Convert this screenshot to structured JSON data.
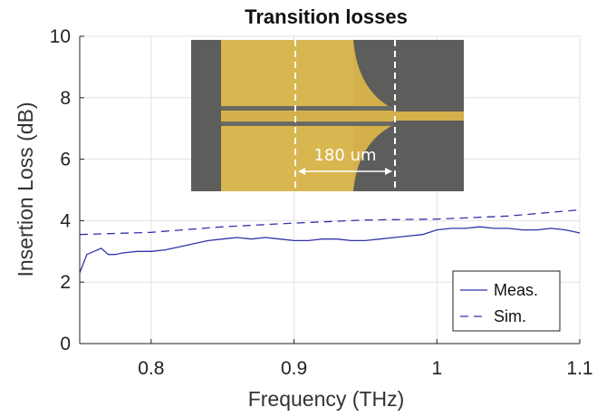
{
  "chart_data": {
    "type": "line",
    "title": "Transition losses",
    "xlabel": "Frequency (THz)",
    "ylabel": "Insertion Loss (dB)",
    "xlim": [
      0.75,
      1.1
    ],
    "ylim": [
      0,
      10
    ],
    "xticks": [
      0.8,
      0.9,
      1,
      1.1
    ],
    "xtick_labels": [
      "0.8",
      "0.9",
      "1",
      "1.1"
    ],
    "yticks": [
      0,
      2,
      4,
      6,
      8,
      10
    ],
    "ytick_labels": [
      "0",
      "2",
      "4",
      "6",
      "8",
      "10"
    ],
    "grid": true,
    "legend_position": "bottom-right",
    "color": "#3333aa",
    "series": [
      {
        "name": "Meas.",
        "style": "solid",
        "x": [
          0.75,
          0.755,
          0.76,
          0.765,
          0.77,
          0.775,
          0.78,
          0.79,
          0.8,
          0.81,
          0.82,
          0.83,
          0.84,
          0.85,
          0.86,
          0.87,
          0.88,
          0.89,
          0.9,
          0.91,
          0.92,
          0.93,
          0.94,
          0.95,
          0.96,
          0.97,
          0.98,
          0.99,
          1.0,
          1.01,
          1.02,
          1.03,
          1.04,
          1.05,
          1.06,
          1.07,
          1.08,
          1.09,
          1.1
        ],
        "y": [
          2.3,
          2.9,
          3.0,
          3.1,
          2.9,
          2.9,
          2.95,
          3.0,
          3.0,
          3.05,
          3.15,
          3.25,
          3.35,
          3.4,
          3.45,
          3.4,
          3.45,
          3.4,
          3.35,
          3.35,
          3.4,
          3.4,
          3.35,
          3.35,
          3.4,
          3.45,
          3.5,
          3.55,
          3.7,
          3.75,
          3.75,
          3.8,
          3.75,
          3.75,
          3.7,
          3.7,
          3.75,
          3.7,
          3.6
        ]
      },
      {
        "name": "Sim.",
        "style": "dashed",
        "x": [
          0.75,
          0.8,
          0.85,
          0.9,
          0.95,
          1.0,
          1.05,
          1.1
        ],
        "y": [
          3.55,
          3.62,
          3.8,
          3.92,
          4.02,
          4.05,
          4.15,
          4.35
        ]
      }
    ],
    "inset": {
      "image": "optical micrograph of transition",
      "annotation": "180 um",
      "colors": {
        "conductor": "#d4b04a",
        "substrate": "#5d5d5b",
        "marker": "#ffffff"
      }
    }
  }
}
